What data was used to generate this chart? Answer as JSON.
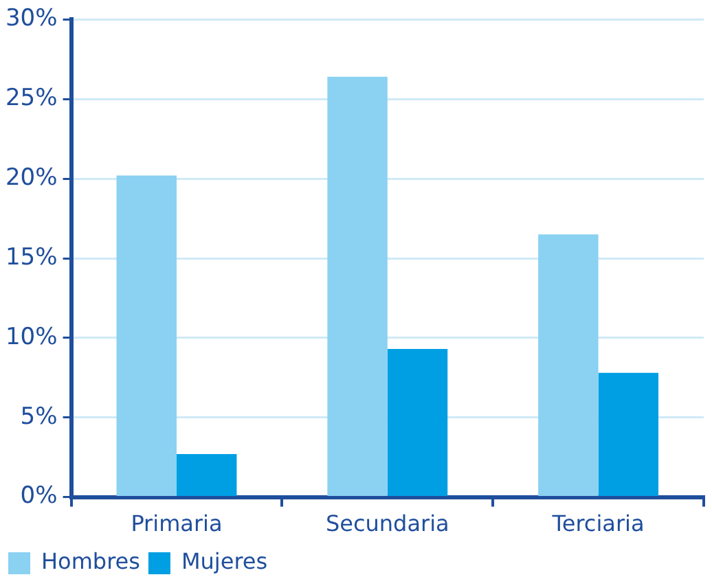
{
  "chart_data": {
    "type": "bar",
    "categories": [
      "Primaria",
      "Secundaria",
      "Terciaria"
    ],
    "series": [
      {
        "name": "Hombres",
        "color": "#8ad1f2",
        "values": [
          20.2,
          26.4,
          16.5
        ]
      },
      {
        "name": "Mujeres",
        "color": "#009fe3",
        "values": [
          2.7,
          9.3,
          7.8
        ]
      }
    ],
    "ylim": [
      0,
      30
    ],
    "yticks": [
      {
        "value": 0,
        "label": "0%"
      },
      {
        "value": 5,
        "label": "5%"
      },
      {
        "value": 10,
        "label": "10%"
      },
      {
        "value": 15,
        "label": "15%"
      },
      {
        "value": 20,
        "label": "20%"
      },
      {
        "value": 25,
        "label": "25%"
      },
      {
        "value": 30,
        "label": "30%"
      }
    ],
    "grid": "y",
    "legend": "bottom left"
  }
}
